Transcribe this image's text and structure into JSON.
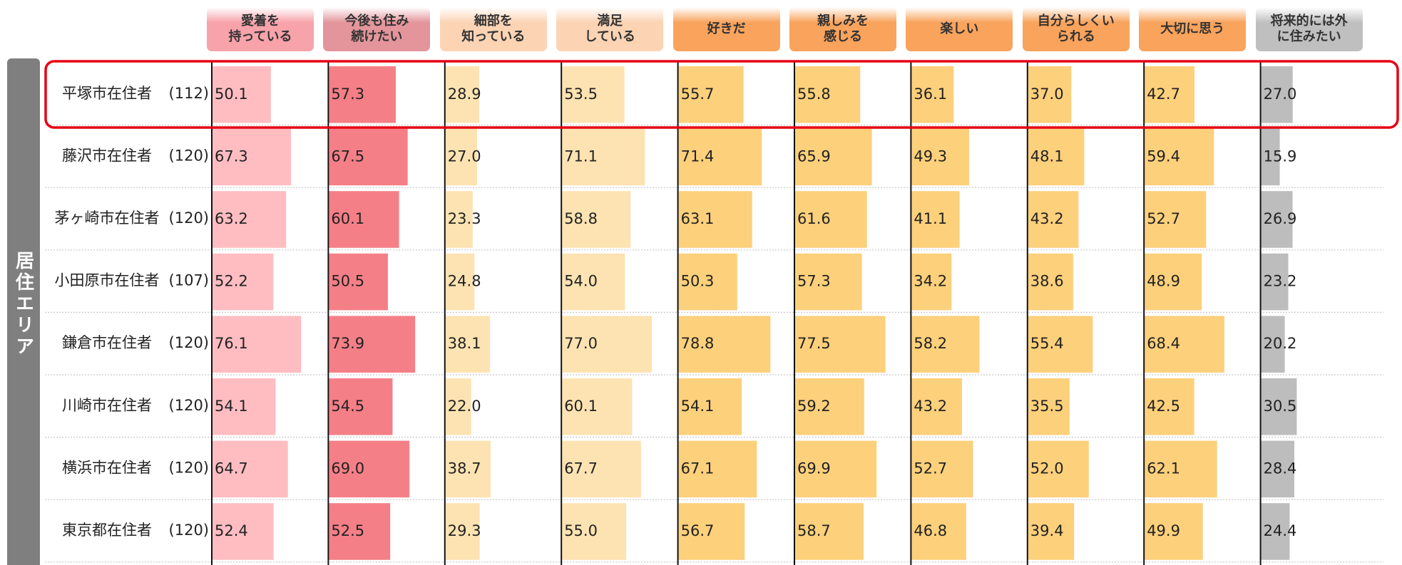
{
  "chart_data": {
    "type": "bar",
    "group_label": "居住エリア",
    "categories": [
      "平塚市在住者",
      "藤沢市在住者",
      "茅ヶ崎市在住者",
      "小田原市在住者",
      "鎌倉市在住者",
      "川崎市在住者",
      "横浜市在住者",
      "東京都在住者"
    ],
    "sample_sizes": [
      "(112)",
      "(120)",
      "(120)",
      "(107)",
      "(120)",
      "(120)",
      "(120)",
      "(120)"
    ],
    "xlim": [
      0,
      100
    ],
    "series": [
      {
        "name": "愛着を\n持っている",
        "header_color": "#f8a3aa",
        "color": "#ffbdc2",
        "values": [
          50.1,
          67.3,
          63.2,
          52.2,
          76.1,
          54.1,
          64.7,
          52.4
        ],
        "value_labels": [
          "50.1",
          "67.3",
          "63.2",
          "52.2",
          "76.1",
          "54.1",
          "64.7",
          "52.4"
        ]
      },
      {
        "name": "今後も住み\n続けたい",
        "header_color": "#e3959b",
        "color": "#f57f87",
        "values": [
          57.3,
          67.5,
          60.1,
          50.5,
          73.9,
          54.5,
          69.0,
          52.5
        ],
        "value_labels": [
          "57.3",
          "67.5",
          "60.1",
          "50.5",
          "73.9",
          "54.5",
          "69.0",
          "52.5"
        ]
      },
      {
        "name": "細部を\n知っている",
        "header_color": "#fcd4b4",
        "color": "#fde3b2",
        "values": [
          28.9,
          27.0,
          23.3,
          24.8,
          38.1,
          22.0,
          38.7,
          29.3
        ],
        "value_labels": [
          "28.9",
          "27.0",
          "23.3",
          "24.8",
          "38.1",
          "22.0",
          "38.7",
          "29.3"
        ]
      },
      {
        "name": "満足\nしている",
        "header_color": "#fcd4b4",
        "color": "#fde3b2",
        "values": [
          53.5,
          71.1,
          58.8,
          54.0,
          77.0,
          60.1,
          67.7,
          55.0
        ],
        "value_labels": [
          "53.5",
          "71.1",
          "58.8",
          "54.0",
          "77.0",
          "60.1",
          "67.7",
          "55.0"
        ]
      },
      {
        "name": "好きだ",
        "header_color": "#f9a35c",
        "color": "#fdd07b",
        "values": [
          55.7,
          71.4,
          63.1,
          50.3,
          78.8,
          54.1,
          67.1,
          56.7
        ],
        "value_labels": [
          "55.7",
          "71.4",
          "63.1",
          "50.3",
          "78.8",
          "54.1",
          "67.1",
          "56.7"
        ]
      },
      {
        "name": "親しみを\n感じる",
        "header_color": "#f9a35c",
        "color": "#fdd07b",
        "values": [
          55.8,
          65.9,
          61.6,
          57.3,
          77.5,
          59.2,
          69.9,
          58.7
        ],
        "value_labels": [
          "55.8",
          "65.9",
          "61.6",
          "57.3",
          "77.5",
          "59.2",
          "69.9",
          "58.7"
        ]
      },
      {
        "name": "楽しい",
        "header_color": "#f9a35c",
        "color": "#fdd07b",
        "values": [
          36.1,
          49.3,
          41.1,
          34.2,
          58.2,
          43.2,
          52.7,
          46.8
        ],
        "value_labels": [
          "36.1",
          "49.3",
          "41.1",
          "34.2",
          "58.2",
          "43.2",
          "52.7",
          "46.8"
        ]
      },
      {
        "name": "自分らしくい\nられる",
        "header_color": "#f9a35c",
        "color": "#fdd07b",
        "values": [
          37.0,
          48.1,
          43.2,
          38.6,
          55.4,
          35.5,
          52.0,
          39.4
        ],
        "value_labels": [
          "37.0",
          "48.1",
          "43.2",
          "38.6",
          "55.4",
          "35.5",
          "52.0",
          "39.4"
        ]
      },
      {
        "name": "大切に思う",
        "header_color": "#f9a35c",
        "color": "#fdd07b",
        "values": [
          42.7,
          59.4,
          52.7,
          48.9,
          68.4,
          42.5,
          62.1,
          49.9
        ],
        "value_labels": [
          "42.7",
          "59.4",
          "52.7",
          "48.9",
          "68.4",
          "42.5",
          "62.1",
          "49.9"
        ]
      },
      {
        "name": "将来的には外\nに住みたい",
        "header_color": "#bfbfbf",
        "color": "#bdbdbd",
        "values": [
          27.0,
          15.9,
          26.9,
          23.2,
          20.2,
          30.5,
          28.4,
          24.4
        ],
        "value_labels": [
          "27.0",
          "15.9",
          "26.9",
          "23.2",
          "20.2",
          "30.5",
          "28.4",
          "24.4"
        ]
      }
    ]
  }
}
